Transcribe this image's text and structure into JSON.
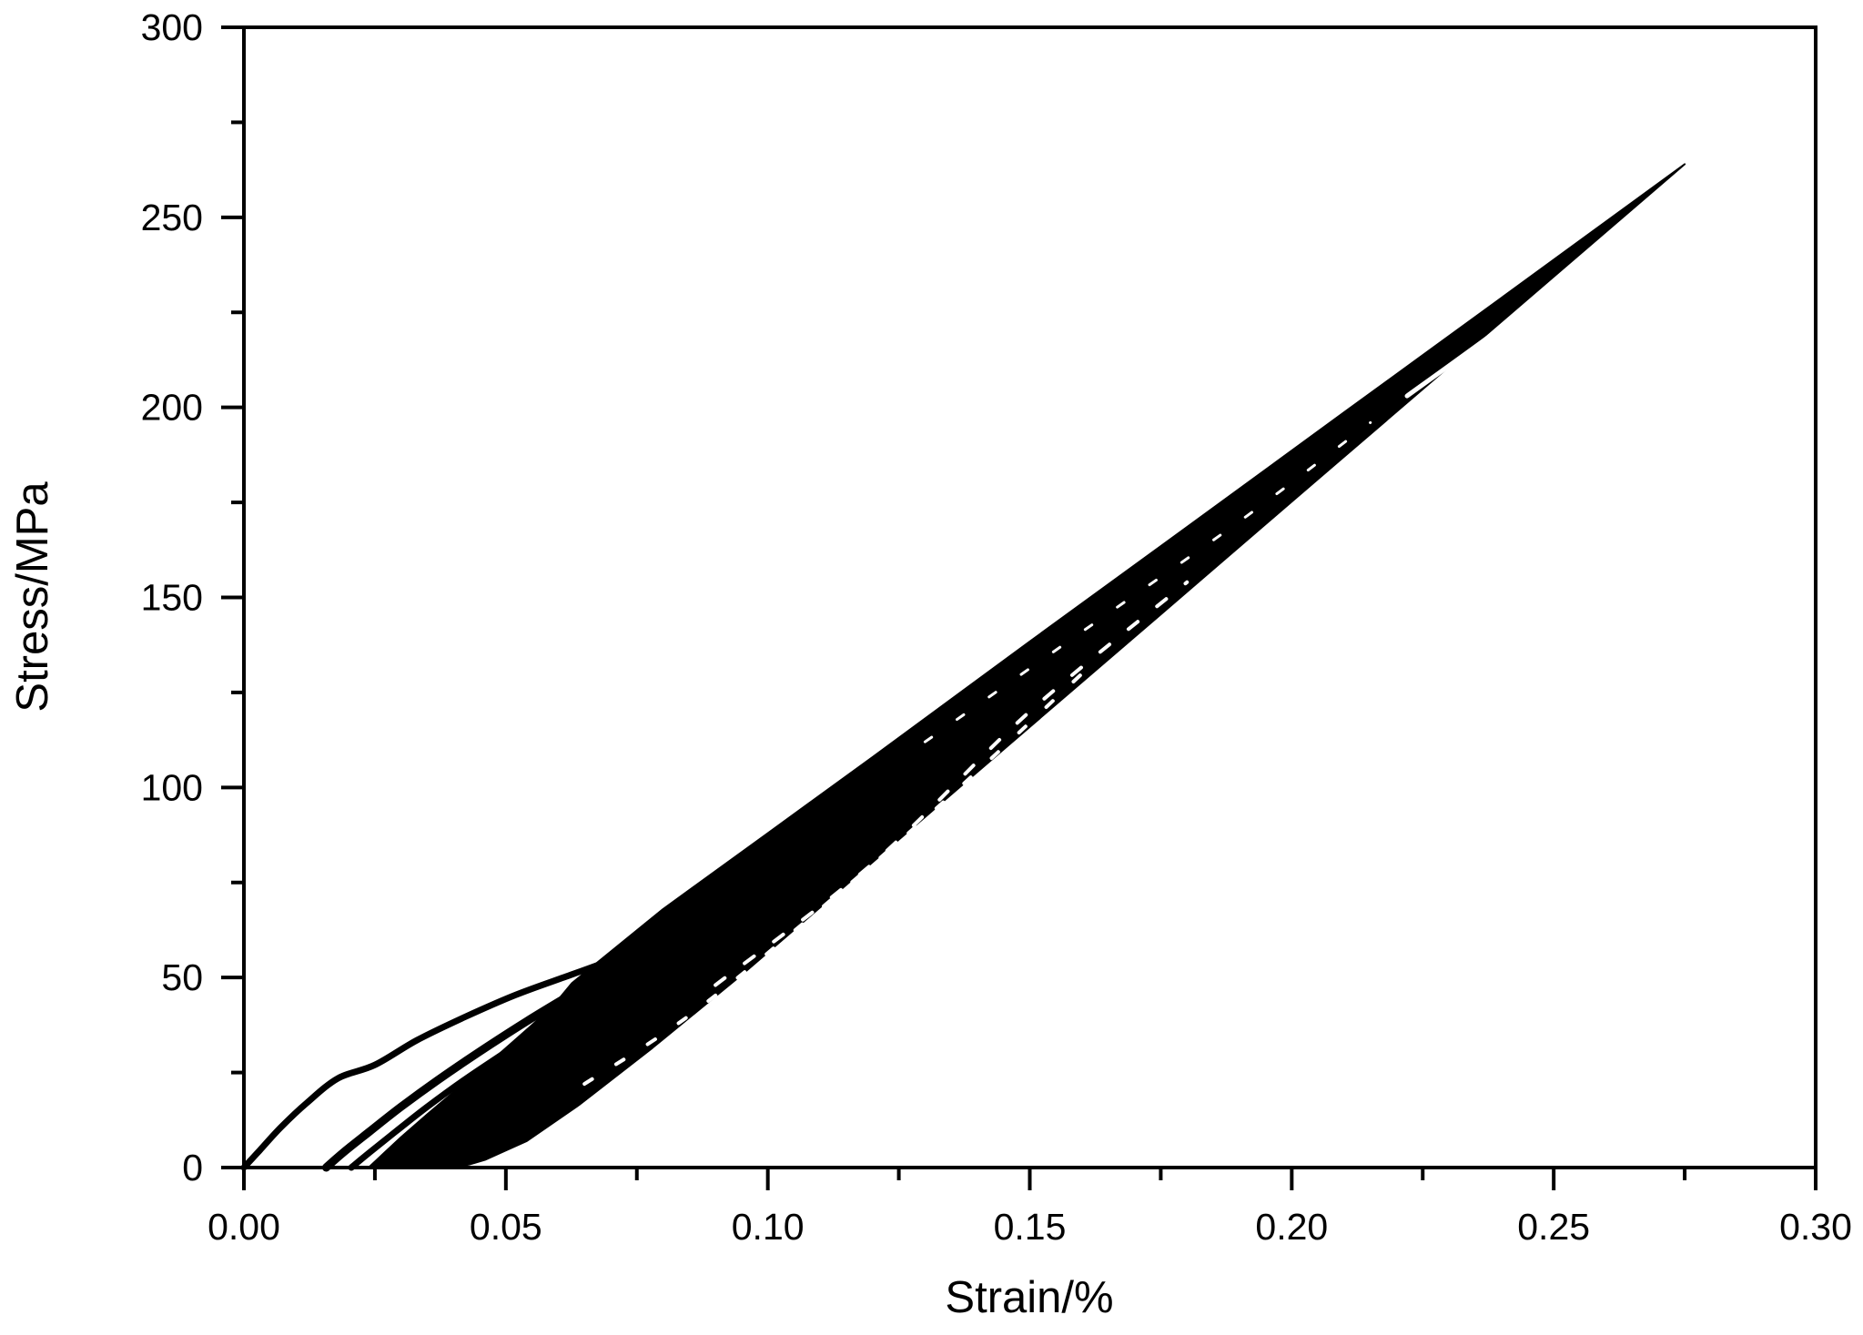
{
  "page": {
    "background_color": "#ffffff",
    "foreground_color": "#000000"
  },
  "chart_data": {
    "type": "line",
    "title": "",
    "xlabel": "Strain/%",
    "ylabel": "Stress/MPa",
    "xlim": [
      0,
      0.3
    ],
    "ylim": [
      0,
      300
    ],
    "grid": false,
    "legend": null,
    "line_color": "#000000",
    "background_color": "#ffffff",
    "x_major_ticks": [
      0.0,
      0.05,
      0.1,
      0.15,
      0.2,
      0.25,
      0.3
    ],
    "x_major_tick_labels": [
      "0.00",
      "0.05",
      "0.10",
      "0.15",
      "0.20",
      "0.25",
      "0.30"
    ],
    "x_minor_ticks": [
      0.025,
      0.075,
      0.125,
      0.175,
      0.225,
      0.275
    ],
    "y_major_ticks": [
      0,
      50,
      100,
      150,
      200,
      250,
      300
    ],
    "y_major_tick_labels": [
      "0",
      "50",
      "100",
      "150",
      "200",
      "250",
      "300"
    ],
    "y_minor_ticks": [
      25,
      75,
      125,
      175,
      225,
      275
    ],
    "peak_point": [
      0.275,
      264
    ],
    "loop_x_intercepts_pct": [
      0.0157,
      0.0205,
      0.0238,
      0.0395
    ],
    "series": [
      {
        "name": "hysteresis-loop-band",
        "role": "filled-band",
        "points": [
          [
            0.0238,
            0
          ],
          [
            0.0265,
            3.5
          ],
          [
            0.03,
            8
          ],
          [
            0.035,
            14
          ],
          [
            0.041,
            21
          ],
          [
            0.048,
            29
          ],
          [
            0.055,
            37.5
          ],
          [
            0.059,
            42.5
          ],
          [
            0.0626,
            48.5
          ],
          [
            0.08,
            68
          ],
          [
            0.1,
            88
          ],
          [
            0.12,
            108
          ],
          [
            0.15,
            138.4
          ],
          [
            0.18,
            168.5
          ],
          [
            0.21,
            198.7
          ],
          [
            0.24,
            228.8
          ],
          [
            0.26,
            248.9
          ],
          [
            0.275,
            264
          ],
          [
            0.25,
            234.4
          ],
          [
            0.23,
            210.7
          ],
          [
            0.2,
            175.2
          ],
          [
            0.17,
            139.6
          ],
          [
            0.14,
            104.1
          ],
          [
            0.115,
            74.4
          ],
          [
            0.095,
            50.7
          ],
          [
            0.078,
            31.5
          ],
          [
            0.064,
            16.5
          ],
          [
            0.054,
            7
          ],
          [
            0.05,
            4.5
          ],
          [
            0.046,
            2
          ],
          [
            0.043,
            0.8
          ],
          [
            0.0395,
            0
          ]
        ]
      },
      {
        "name": "loop-separation-streak-near-tip",
        "role": "gap-line",
        "stroke_width": 5,
        "points": [
          [
            0.222,
            203
          ],
          [
            0.24,
            221
          ],
          [
            0.258,
            240
          ],
          [
            0.2705,
            254
          ]
        ]
      },
      {
        "name": "loop-separation-streak-upper",
        "role": "gap-line",
        "stroke_width": 3,
        "dash": [
          9,
          34
        ],
        "points": [
          [
            0.13,
            112
          ],
          [
            0.16,
            141
          ],
          [
            0.19,
            170
          ],
          [
            0.215,
            196
          ]
        ]
      },
      {
        "name": "loop-separation-streak-mid-1",
        "role": "gap-line",
        "stroke_width": 4,
        "dash": [
          13,
          27
        ],
        "points": [
          [
            0.09,
            48
          ],
          [
            0.12,
            80
          ],
          [
            0.15,
            120
          ],
          [
            0.18,
            154
          ]
        ]
      },
      {
        "name": "loop-separation-streak-mid-2",
        "role": "gap-line",
        "stroke_width": 4,
        "dash": [
          10,
          31
        ],
        "points": [
          [
            0.065,
            22
          ],
          [
            0.085,
            40
          ],
          [
            0.11,
            68
          ],
          [
            0.135,
            98
          ],
          [
            0.16,
            130
          ]
        ]
      },
      {
        "name": "loop-separation-notch-at-merge",
        "role": "gap-line",
        "stroke_width": 4,
        "points": [
          [
            0.056,
            44.5
          ],
          [
            0.0626,
            50
          ]
        ]
      },
      {
        "name": "initial-loading-curve",
        "role": "line",
        "stroke_width": 7,
        "points": [
          [
            0.0,
            0
          ],
          [
            0.003,
            4.5
          ],
          [
            0.007,
            10.5
          ],
          [
            0.012,
            17
          ],
          [
            0.018,
            23.5
          ],
          [
            0.025,
            27
          ],
          [
            0.033,
            33.5
          ],
          [
            0.042,
            39.5
          ],
          [
            0.052,
            45.5
          ],
          [
            0.0626,
            50.8
          ],
          [
            0.072,
            55.5
          ]
        ]
      },
      {
        "name": "first-cycle-unload-reload-loop",
        "role": "line",
        "stroke_width": 9,
        "points": [
          [
            0.0157,
            0
          ],
          [
            0.019,
            4
          ],
          [
            0.024,
            9.5
          ],
          [
            0.03,
            16
          ],
          [
            0.037,
            23
          ],
          [
            0.045,
            30.5
          ],
          [
            0.054,
            38.5
          ],
          [
            0.063,
            46
          ],
          [
            0.071,
            52.5
          ],
          [
            0.078,
            58
          ]
        ]
      },
      {
        "name": "second-cycle-unload-reload-loop",
        "role": "line",
        "stroke_width": 7,
        "points": [
          [
            0.0205,
            0
          ],
          [
            0.024,
            4
          ],
          [
            0.029,
            9.5
          ],
          [
            0.035,
            16
          ],
          [
            0.042,
            23
          ],
          [
            0.049,
            29.5
          ],
          [
            0.056,
            36
          ]
        ]
      }
    ]
  }
}
